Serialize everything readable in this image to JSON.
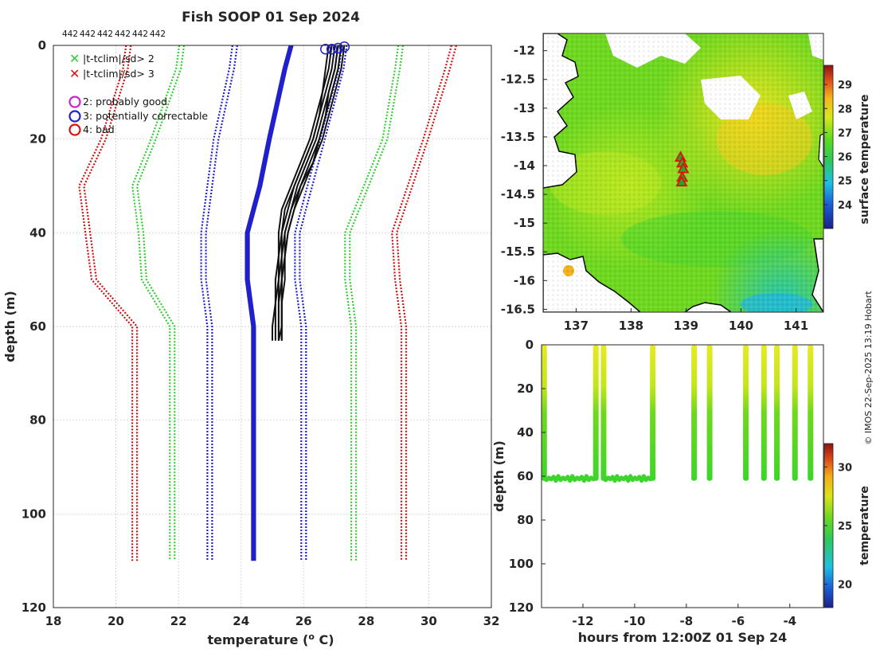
{
  "figure": {
    "title": "Fish SOOP 01 Sep 2024",
    "probe_counts": [
      "442",
      "442",
      "442",
      "442",
      "442",
      "442"
    ],
    "credit": "© IMOS 22-Sep-2025 13:19 Hobart"
  },
  "colors": {
    "clim_2sd": "#33cc33",
    "clim_3sd": "#cc1111",
    "clim_mean": "#1f1fcc",
    "profiles": "#111111",
    "flag_good": "#cc22cc",
    "flag_correctable": "#2222cc",
    "flag_bad": "#dd1111"
  },
  "legend": {
    "items": [
      {
        "symbol": "x",
        "color": "#33cc33",
        "label": "|t-tclim|/sd> 2"
      },
      {
        "symbol": "x",
        "color": "#dd1111",
        "label": "|t-tclim|/sd> 3"
      },
      {
        "symbol": "o",
        "color": "#cc22cc",
        "label": "2: probably good"
      },
      {
        "symbol": "o",
        "color": "#2222cc",
        "label": "3: potentially correctable"
      },
      {
        "symbol": "o",
        "color": "#dd1111",
        "label": "4: bad"
      }
    ]
  },
  "chart_data": [
    {
      "type": "line",
      "name": "profile-panel",
      "title": "Fish SOOP 01 Sep 2024",
      "xlabel": "temperature (° C)",
      "xlabel_parts": {
        "pre": "temperature (",
        "sup": "o",
        "post": " C)"
      },
      "ylabel": "depth (m)",
      "xlim": [
        18,
        32
      ],
      "ylim": [
        0,
        120
      ],
      "y_reversed": true,
      "grid": true,
      "xticks": [
        "18",
        "20",
        "22",
        "24",
        "26",
        "28",
        "30",
        "32"
      ],
      "yticks": [
        "0",
        "20",
        "40",
        "60",
        "80",
        "100",
        "120"
      ],
      "depth_levels": [
        0,
        5,
        20,
        30,
        40,
        50,
        60,
        110
      ],
      "climatology_series": [
        {
          "name": "clim-minus-3sd",
          "band": "3sd",
          "values": [
            20.4,
            20.3,
            19.6,
            18.9,
            19.1,
            19.3,
            20.6,
            20.6
          ]
        },
        {
          "name": "clim-minus-2sd",
          "band": "2sd",
          "values": [
            22.1,
            22.0,
            21.2,
            20.6,
            20.8,
            20.9,
            21.8,
            21.8
          ]
        },
        {
          "name": "clim-minus-1sd",
          "band": "mean",
          "values": [
            23.8,
            23.7,
            23.2,
            23.0,
            22.8,
            22.8,
            23.0,
            23.0
          ]
        },
        {
          "name": "clim-mean",
          "band": "mean",
          "values": [
            25.6,
            25.4,
            24.9,
            24.6,
            24.2,
            24.2,
            24.4,
            24.4
          ]
        },
        {
          "name": "clim-plus-1sd",
          "band": "mean",
          "values": [
            27.3,
            27.2,
            26.6,
            26.2,
            25.8,
            25.8,
            26.0,
            26.0
          ]
        },
        {
          "name": "clim-plus-2sd",
          "band": "2sd",
          "values": [
            29.1,
            29.0,
            28.6,
            28.0,
            27.4,
            27.4,
            27.6,
            27.6
          ]
        },
        {
          "name": "clim-plus-3sd",
          "band": "3sd",
          "values": [
            30.8,
            30.6,
            29.9,
            29.4,
            28.9,
            29.0,
            29.2,
            29.2
          ]
        }
      ],
      "profile_depths": [
        0,
        5,
        10,
        15,
        20,
        25,
        30,
        35,
        40,
        45,
        50,
        55,
        60,
        63
      ],
      "profiles": [
        {
          "name": "drop-1",
          "values": [
            26.8,
            26.7,
            26.6,
            26.4,
            26.2,
            25.9,
            25.6,
            25.3,
            25.2,
            25.2,
            25.1,
            25.1,
            25.0,
            25.0
          ]
        },
        {
          "name": "drop-2",
          "values": [
            26.9,
            26.8,
            26.6,
            26.5,
            26.3,
            26.0,
            25.7,
            25.4,
            25.3,
            25.2,
            25.2,
            25.1,
            25.1,
            25.1
          ]
        },
        {
          "name": "drop-3",
          "values": [
            27.0,
            26.9,
            26.7,
            26.5,
            26.3,
            26.0,
            25.7,
            25.5,
            25.3,
            25.3,
            25.2,
            25.2,
            25.2,
            25.2
          ]
        },
        {
          "name": "drop-4",
          "values": [
            27.1,
            27.0,
            26.8,
            26.6,
            26.4,
            26.1,
            25.8,
            25.6,
            25.4,
            25.3,
            25.3,
            25.2,
            25.2,
            25.2
          ]
        },
        {
          "name": "drop-5",
          "values": [
            27.1,
            27.0,
            26.8,
            26.7,
            26.5,
            26.2,
            25.9,
            25.6,
            25.4,
            25.4,
            25.3,
            25.3,
            25.3,
            25.2
          ]
        },
        {
          "name": "drop-6",
          "values": [
            27.2,
            27.1,
            26.9,
            26.7,
            26.5,
            26.3,
            25.9,
            25.7,
            25.5,
            25.4,
            25.3,
            25.3,
            25.3,
            25.3
          ]
        },
        {
          "name": "drop-7",
          "values": [
            27.3,
            27.2,
            27.0,
            26.8,
            26.6,
            26.3,
            26.0,
            25.7,
            25.5,
            25.4,
            25.4,
            25.3,
            25.3,
            25.3
          ]
        }
      ],
      "surface_flags": [
        {
          "temperature": 26.7,
          "depth": 0.8,
          "flag": "3"
        },
        {
          "temperature": 26.9,
          "depth": 0.8,
          "flag": "3"
        },
        {
          "temperature": 27.1,
          "depth": 0.6,
          "flag": "3"
        },
        {
          "temperature": 27.3,
          "depth": 0.3,
          "flag": "3"
        }
      ]
    },
    {
      "type": "heatmap",
      "name": "map-panel",
      "xlim": [
        136.4,
        141.5
      ],
      "ylim": [
        -16.55,
        -11.7
      ],
      "xticks": [
        "137",
        "138",
        "139",
        "140",
        "141"
      ],
      "yticks": [
        "-12",
        "-12.5",
        "-13",
        "-13.5",
        "-14",
        "-14.5",
        "-15",
        "-15.5",
        "-16",
        "-16.5"
      ],
      "colorbar_label": "surface temperature",
      "colorbar_range": [
        23,
        29.8
      ],
      "colorbar_ticks": [
        "24",
        "25",
        "26",
        "27",
        "28",
        "29"
      ],
      "drop_locations": [
        {
          "lon": 138.9,
          "lat": -13.85
        },
        {
          "lon": 138.93,
          "lat": -13.95
        },
        {
          "lon": 138.95,
          "lat": -14.05
        },
        {
          "lon": 138.93,
          "lat": -14.2
        },
        {
          "lon": 138.92,
          "lat": -14.28
        }
      ]
    },
    {
      "type": "scatter",
      "name": "section-panel",
      "xlabel": "hours from 12:00Z 01 Sep 24",
      "ylabel": "depth (m)",
      "xlim": [
        -13.6,
        -2.7
      ],
      "ylim": [
        0,
        120
      ],
      "y_reversed": true,
      "xticks": [
        "-12",
        "-10",
        "-8",
        "-6",
        "-4"
      ],
      "yticks": [
        "0",
        "20",
        "40",
        "60",
        "80",
        "100",
        "120"
      ],
      "colorbar_label": "temperature",
      "colorbar_range": [
        18,
        32
      ],
      "colorbar_ticks": [
        "20",
        "25",
        "30"
      ],
      "drop_times": [
        -13.5,
        -11.5,
        -11.2,
        -9.3,
        -7.7,
        -7.1,
        -5.7,
        -5.0,
        -4.5,
        -3.8,
        -3.2
      ],
      "bottom_depth": 61,
      "transects": [
        [
          -13.5,
          -11.5
        ],
        [
          -11.2,
          -9.3
        ]
      ]
    }
  ]
}
